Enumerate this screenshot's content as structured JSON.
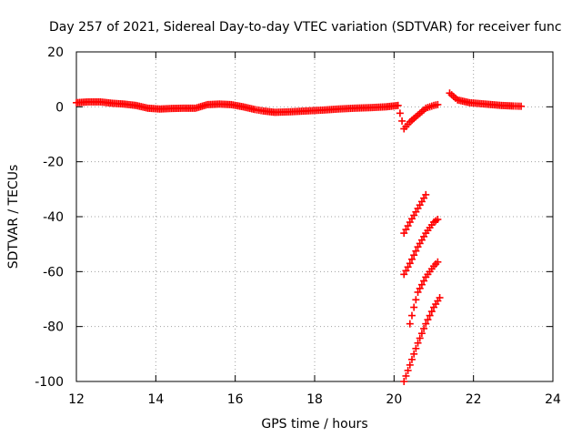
{
  "chart_data": {
    "type": "scatter",
    "title": "Day 257 of 2021, Sidereal Day-to-day VTEC variation (SDTVAR) for receiver func",
    "xlabel": "GPS time / hours",
    "ylabel": "SDTVAR / TECUs",
    "xlim": [
      12,
      24
    ],
    "ylim": [
      -100,
      20
    ],
    "xticks": [
      "12",
      "14",
      "16",
      "18",
      "20",
      "22",
      "24"
    ],
    "yticks": [
      "20",
      "0",
      "-20",
      "-40",
      "-60",
      "-80",
      "-100"
    ],
    "grid": true,
    "marker": "plus",
    "color": "#ff0000",
    "series": [
      {
        "points": [
          [
            12.0,
            1.5
          ],
          [
            12.3,
            1.8
          ],
          [
            12.6,
            1.8
          ],
          [
            12.9,
            1.3
          ],
          [
            13.2,
            1.0
          ],
          [
            13.5,
            0.5
          ],
          [
            13.8,
            -0.5
          ],
          [
            14.1,
            -0.8
          ],
          [
            14.4,
            -0.6
          ],
          [
            14.7,
            -0.5
          ],
          [
            15.0,
            -0.5
          ],
          [
            15.3,
            0.8
          ],
          [
            15.6,
            1.0
          ],
          [
            15.9,
            0.8
          ],
          [
            16.2,
            0.0
          ],
          [
            16.5,
            -1.0
          ],
          [
            16.7,
            -1.5
          ],
          [
            17.0,
            -2.0
          ],
          [
            17.4,
            -1.8
          ],
          [
            17.8,
            -1.5
          ],
          [
            18.2,
            -1.2
          ],
          [
            18.6,
            -0.8
          ],
          [
            19.0,
            -0.5
          ],
          [
            19.4,
            -0.3
          ],
          [
            19.8,
            0.0
          ],
          [
            20.1,
            0.5
          ],
          [
            20.25,
            -8.0
          ],
          [
            20.4,
            -5.5
          ],
          [
            20.6,
            -3.0
          ],
          [
            20.8,
            -0.5
          ],
          [
            21.0,
            0.5
          ],
          [
            21.1,
            0.8
          ],
          [
            20.25,
            -46.0
          ],
          [
            20.4,
            -42.0
          ],
          [
            20.6,
            -37.0
          ],
          [
            20.8,
            -32.0
          ],
          [
            20.25,
            -61.0
          ],
          [
            20.4,
            -57.0
          ],
          [
            20.6,
            -51.0
          ],
          [
            20.8,
            -46.0
          ],
          [
            21.0,
            -42.0
          ],
          [
            21.1,
            -41.0
          ],
          [
            20.4,
            -79.0
          ],
          [
            20.5,
            -73.0
          ],
          [
            20.6,
            -67.5
          ],
          [
            20.8,
            -62.0
          ],
          [
            21.0,
            -58.0
          ],
          [
            21.1,
            -56.5
          ],
          [
            20.25,
            -100.0
          ],
          [
            20.4,
            -94.0
          ],
          [
            20.6,
            -86.0
          ],
          [
            20.8,
            -79.0
          ],
          [
            21.0,
            -73.0
          ],
          [
            21.15,
            -69.5
          ],
          [
            21.4,
            5.0
          ],
          [
            21.6,
            2.5
          ],
          [
            21.9,
            1.5
          ],
          [
            22.3,
            1.0
          ],
          [
            22.7,
            0.5
          ],
          [
            23.0,
            0.3
          ],
          [
            23.2,
            0.2
          ]
        ]
      }
    ]
  }
}
